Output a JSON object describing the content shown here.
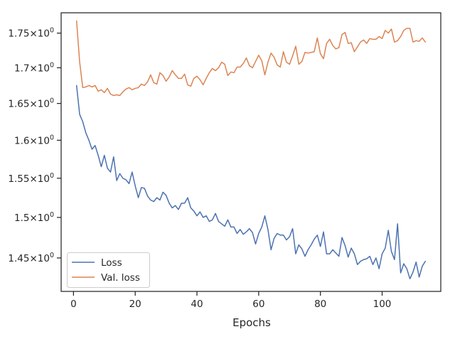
{
  "chart_data": {
    "type": "line",
    "xlabel": "Epochs",
    "ylabel": "",
    "xlim": [
      -4,
      119
    ],
    "ylim": [
      1.41,
      1.78
    ],
    "y_scale": "log",
    "grid": false,
    "legend_position": "lower-left",
    "x_ticks": [
      0,
      20,
      40,
      60,
      80,
      100
    ],
    "x_tick_labels": [
      "0",
      "20",
      "40",
      "60",
      "80",
      "100"
    ],
    "y_ticks": [
      1.45,
      1.5,
      1.55,
      1.6,
      1.65,
      1.7,
      1.75
    ],
    "y_tick_labels": [
      {
        "base": "1.45",
        "sep": "×",
        "pow": "10",
        "exp": "0"
      },
      {
        "base": "1.5",
        "sep": "×",
        "pow": "10",
        "exp": "0"
      },
      {
        "base": "1.55",
        "sep": "×",
        "pow": "10",
        "exp": "0"
      },
      {
        "base": "1.6",
        "sep": "×",
        "pow": "10",
        "exp": "0"
      },
      {
        "base": "1.65",
        "sep": "×",
        "pow": "10",
        "exp": "0"
      },
      {
        "base": "1.7",
        "sep": "×",
        "pow": "10",
        "exp": "0"
      },
      {
        "base": "1.75",
        "sep": "×",
        "pow": "10",
        "exp": "0"
      }
    ],
    "colors": {
      "Loss": "#4c72b0",
      "Val. loss": "#dd8452",
      "axes": "#262626"
    },
    "series": [
      {
        "name": "Loss",
        "x": [
          1,
          2,
          3,
          4,
          5,
          6,
          7,
          8,
          9,
          10,
          11,
          12,
          13,
          14,
          15,
          16,
          17,
          18,
          19,
          20,
          21,
          22,
          23,
          24,
          25,
          26,
          27,
          28,
          29,
          30,
          31,
          32,
          33,
          34,
          35,
          36,
          37,
          38,
          39,
          40,
          41,
          42,
          43,
          44,
          45,
          46,
          47,
          48,
          49,
          50,
          51,
          52,
          53,
          54,
          55,
          56,
          57,
          58,
          59,
          60,
          61,
          62,
          63,
          64,
          65,
          66,
          67,
          68,
          69,
          70,
          71,
          72,
          73,
          74,
          75,
          76,
          77,
          78,
          79,
          80,
          81,
          82,
          83,
          84,
          85,
          86,
          87,
          88,
          89,
          90,
          91,
          92,
          93,
          94,
          95,
          96,
          97,
          98,
          99,
          100,
          101,
          102,
          103,
          104,
          105,
          106,
          107,
          108,
          109,
          110,
          111,
          112,
          113,
          114
        ],
        "values": [
          1.675,
          1.635,
          1.625,
          1.61,
          1.6,
          1.588,
          1.593,
          1.58,
          1.565,
          1.58,
          1.563,
          1.558,
          1.578,
          1.547,
          1.556,
          1.55,
          1.548,
          1.543,
          1.558,
          1.54,
          1.525,
          1.538,
          1.537,
          1.527,
          1.522,
          1.52,
          1.525,
          1.522,
          1.532,
          1.528,
          1.518,
          1.512,
          1.515,
          1.51,
          1.518,
          1.518,
          1.525,
          1.512,
          1.508,
          1.502,
          1.507,
          1.5,
          1.502,
          1.495,
          1.497,
          1.505,
          1.495,
          1.492,
          1.489,
          1.497,
          1.488,
          1.488,
          1.48,
          1.485,
          1.479,
          1.482,
          1.486,
          1.481,
          1.467,
          1.48,
          1.488,
          1.502,
          1.485,
          1.46,
          1.474,
          1.48,
          1.478,
          1.478,
          1.472,
          1.476,
          1.486,
          1.455,
          1.466,
          1.461,
          1.452,
          1.46,
          1.466,
          1.473,
          1.478,
          1.464,
          1.482,
          1.455,
          1.455,
          1.46,
          1.456,
          1.452,
          1.475,
          1.465,
          1.451,
          1.462,
          1.455,
          1.442,
          1.446,
          1.448,
          1.449,
          1.452,
          1.442,
          1.45,
          1.437,
          1.455,
          1.462,
          1.484,
          1.458,
          1.448,
          1.492,
          1.432,
          1.443,
          1.437,
          1.425,
          1.433,
          1.445,
          1.427,
          1.44,
          1.446
        ]
      },
      {
        "name": "Val. loss",
        "x": [
          1,
          2,
          3,
          4,
          5,
          6,
          7,
          8,
          9,
          10,
          11,
          12,
          13,
          14,
          15,
          16,
          17,
          18,
          19,
          20,
          21,
          22,
          23,
          24,
          25,
          26,
          27,
          28,
          29,
          30,
          31,
          32,
          33,
          34,
          35,
          36,
          37,
          38,
          39,
          40,
          41,
          42,
          43,
          44,
          45,
          46,
          47,
          48,
          49,
          50,
          51,
          52,
          53,
          54,
          55,
          56,
          57,
          58,
          59,
          60,
          61,
          62,
          63,
          64,
          65,
          66,
          67,
          68,
          69,
          70,
          71,
          72,
          73,
          74,
          75,
          76,
          77,
          78,
          79,
          80,
          81,
          82,
          83,
          84,
          85,
          86,
          87,
          88,
          89,
          90,
          91,
          92,
          93,
          94,
          95,
          96,
          97,
          98,
          99,
          100,
          101,
          102,
          103,
          104,
          105,
          106,
          107,
          108,
          109,
          110,
          111,
          112,
          113,
          114
        ],
        "values": [
          1.768,
          1.708,
          1.672,
          1.673,
          1.675,
          1.673,
          1.675,
          1.667,
          1.669,
          1.665,
          1.671,
          1.663,
          1.661,
          1.662,
          1.661,
          1.666,
          1.67,
          1.672,
          1.669,
          1.671,
          1.672,
          1.677,
          1.675,
          1.68,
          1.69,
          1.679,
          1.677,
          1.693,
          1.689,
          1.681,
          1.687,
          1.696,
          1.69,
          1.685,
          1.685,
          1.691,
          1.676,
          1.674,
          1.685,
          1.688,
          1.683,
          1.676,
          1.685,
          1.693,
          1.699,
          1.696,
          1.7,
          1.708,
          1.705,
          1.689,
          1.694,
          1.693,
          1.701,
          1.701,
          1.706,
          1.714,
          1.703,
          1.7,
          1.709,
          1.718,
          1.71,
          1.69,
          1.708,
          1.721,
          1.715,
          1.704,
          1.701,
          1.723,
          1.708,
          1.705,
          1.717,
          1.731,
          1.705,
          1.709,
          1.722,
          1.721,
          1.722,
          1.723,
          1.743,
          1.72,
          1.713,
          1.735,
          1.741,
          1.732,
          1.727,
          1.729,
          1.748,
          1.751,
          1.735,
          1.736,
          1.723,
          1.73,
          1.737,
          1.74,
          1.735,
          1.742,
          1.741,
          1.741,
          1.745,
          1.742,
          1.754,
          1.75,
          1.756,
          1.737,
          1.739,
          1.745,
          1.754,
          1.757,
          1.757,
          1.737,
          1.739,
          1.738,
          1.743,
          1.737
        ]
      }
    ]
  }
}
